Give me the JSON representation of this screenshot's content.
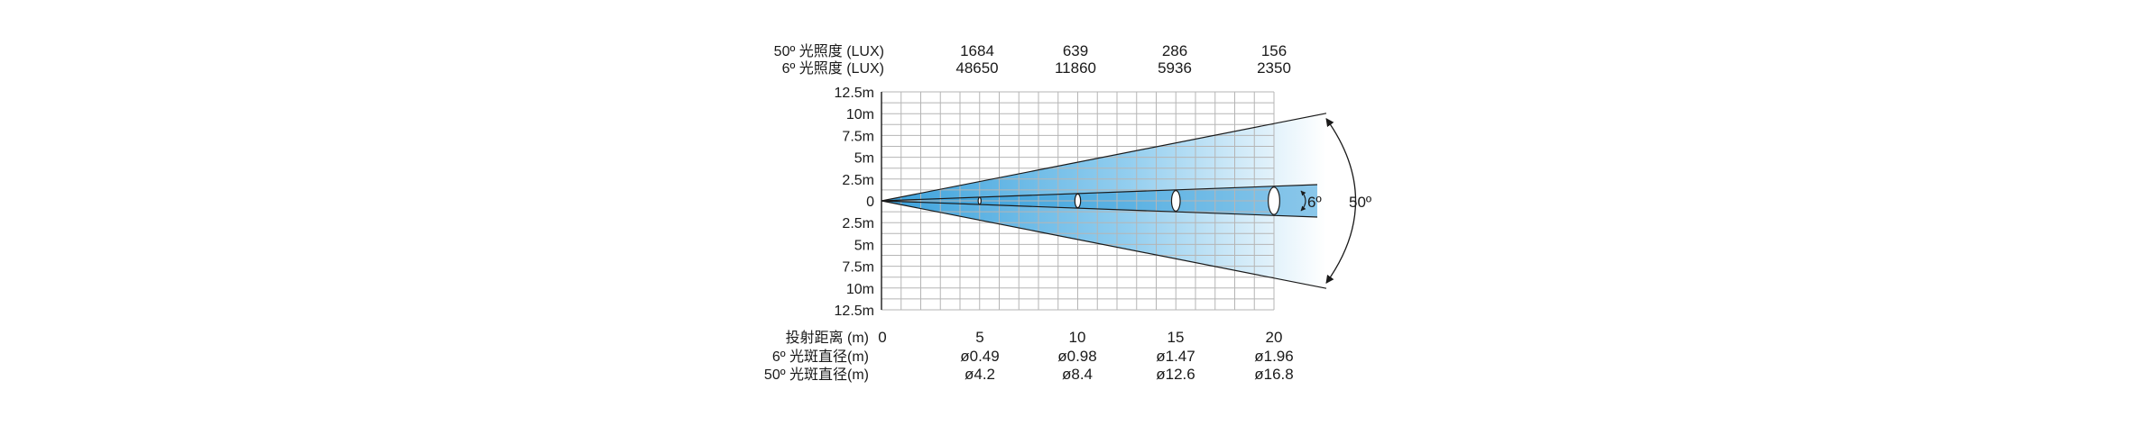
{
  "header_rows": [
    {
      "label": "50º 光照度 (LUX)",
      "values": [
        "1684",
        "639",
        "286",
        "156"
      ]
    },
    {
      "label": "6º 光照度 (LUX)",
      "values": [
        "48650",
        "11860",
        "5936",
        "2350"
      ]
    }
  ],
  "footer_rows": [
    {
      "label": "投射距离 (m)",
      "values": [
        "0",
        "5",
        "10",
        "15",
        "20"
      ]
    },
    {
      "label": "6º 光斑直径(m)",
      "values": [
        "",
        "ø0.49",
        "ø0.98",
        "ø1.47",
        "ø1.96"
      ]
    },
    {
      "label": "50º 光斑直径(m)",
      "values": [
        "",
        "ø4.2",
        "ø8.4",
        "ø12.6",
        "ø16.8"
      ]
    }
  ],
  "y_axis_labels": [
    "12.5m",
    "10m",
    "7.5m",
    "5m",
    "2.5m",
    "0",
    "2.5m",
    "5m",
    "7.5m",
    "10m",
    "12.5m"
  ],
  "angles": {
    "wide": "50º",
    "narrow": "6º"
  },
  "colors": {
    "beam_dark": "#2f9bd9",
    "beam_light": "#ffffff",
    "grid": "#b5b5b5",
    "line": "#1a1a1a"
  },
  "chart_data": {
    "type": "beam-angle",
    "distances_m": [
      0,
      5,
      10,
      15,
      20
    ],
    "wide_beam_deg": 50,
    "narrow_beam_deg": 6,
    "lux_50deg": [
      1684,
      639,
      286,
      156
    ],
    "lux_6deg": [
      48650,
      11860,
      5936,
      2350
    ],
    "spot_diameter_6deg_m": [
      0.49,
      0.98,
      1.47,
      1.96
    ],
    "spot_diameter_50deg_m": [
      4.2,
      8.4,
      12.6,
      16.8
    ],
    "y_range_m": [
      -12.5,
      12.5
    ],
    "x_range_m": [
      0,
      20
    ]
  }
}
